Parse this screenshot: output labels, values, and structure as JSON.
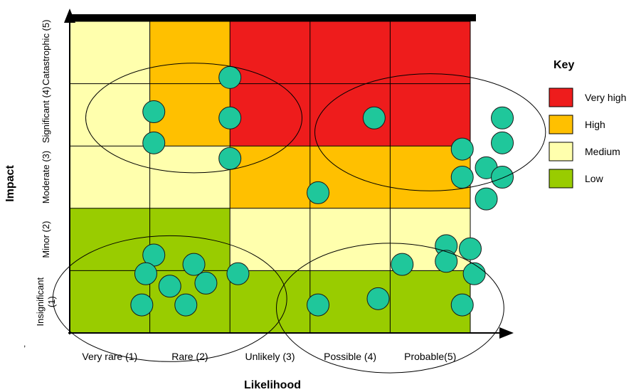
{
  "x_axis": {
    "title": "Likelihood",
    "labels": [
      "Very rare (1)",
      "Rare (2)",
      "Unlikely (3)",
      "Possible (4)",
      "Probable(5)"
    ]
  },
  "y_axis": {
    "title": "Impact",
    "labels": [
      "Insignificant (1)",
      "Minor (2)",
      "Moderate (3)",
      "Significant (4)",
      "Catastrophic (5)"
    ]
  },
  "stray_mark": ",",
  "colors": {
    "very_high": "#ee1c1c",
    "high": "#ffc000",
    "medium": "#ffffad",
    "low": "#99cc00",
    "dot": "#1fc79b",
    "grid": "#000000"
  },
  "grid": {
    "rows_top_to_bottom": [
      [
        "medium",
        "high",
        "very_high",
        "very_high",
        "very_high"
      ],
      [
        "medium",
        "high",
        "very_high",
        "very_high",
        "very_high"
      ],
      [
        "medium",
        "medium",
        "high",
        "high",
        "high"
      ],
      [
        "low",
        "low",
        "medium",
        "medium",
        "medium"
      ],
      [
        "low",
        "low",
        "low",
        "low",
        "low"
      ]
    ]
  },
  "key": {
    "title": "Key",
    "items": [
      {
        "label": "Very high",
        "level": "very_high"
      },
      {
        "label": "High",
        "level": "high"
      },
      {
        "label": "Medium",
        "level": "medium"
      },
      {
        "label": "Low",
        "level": "low"
      }
    ]
  },
  "risks": [
    {
      "likelihood": 1.55,
      "impact": 4.05
    },
    {
      "likelihood": 1.55,
      "impact": 3.55
    },
    {
      "likelihood": 2.5,
      "impact": 4.6
    },
    {
      "likelihood": 2.5,
      "impact": 3.95
    },
    {
      "likelihood": 2.5,
      "impact": 3.3
    },
    {
      "likelihood": 3.6,
      "impact": 2.75
    },
    {
      "likelihood": 4.3,
      "impact": 3.95
    },
    {
      "likelihood": 5.9,
      "impact": 3.95
    },
    {
      "likelihood": 5.9,
      "impact": 3.55
    },
    {
      "likelihood": 5.4,
      "impact": 3.45
    },
    {
      "likelihood": 5.7,
      "impact": 3.15
    },
    {
      "likelihood": 5.4,
      "impact": 3.0
    },
    {
      "likelihood": 5.9,
      "impact": 3.0
    },
    {
      "likelihood": 5.7,
      "impact": 2.65
    },
    {
      "likelihood": 1.55,
      "impact": 1.75
    },
    {
      "likelihood": 1.45,
      "impact": 1.45
    },
    {
      "likelihood": 1.75,
      "impact": 1.25
    },
    {
      "likelihood": 1.4,
      "impact": 0.95
    },
    {
      "likelihood": 1.95,
      "impact": 0.95
    },
    {
      "likelihood": 2.05,
      "impact": 1.6
    },
    {
      "likelihood": 2.2,
      "impact": 1.3
    },
    {
      "likelihood": 2.6,
      "impact": 1.45
    },
    {
      "likelihood": 3.6,
      "impact": 0.95
    },
    {
      "likelihood": 4.35,
      "impact": 1.05
    },
    {
      "likelihood": 4.65,
      "impact": 1.6
    },
    {
      "likelihood": 5.2,
      "impact": 1.9
    },
    {
      "likelihood": 5.5,
      "impact": 1.85
    },
    {
      "likelihood": 5.2,
      "impact": 1.65
    },
    {
      "likelihood": 5.55,
      "impact": 1.45
    },
    {
      "likelihood": 5.4,
      "impact": 0.95
    }
  ],
  "groupings": [
    {
      "center": [
        2.05,
        3.95
      ],
      "radii": [
        1.35,
        0.88
      ]
    },
    {
      "center": [
        5.0,
        3.72
      ],
      "radii": [
        1.44,
        0.94
      ]
    },
    {
      "center": [
        1.75,
        1.05
      ],
      "radii": [
        1.46,
        1.01
      ]
    },
    {
      "center": [
        4.5,
        0.9
      ],
      "radii": [
        1.42,
        1.04
      ]
    }
  ]
}
